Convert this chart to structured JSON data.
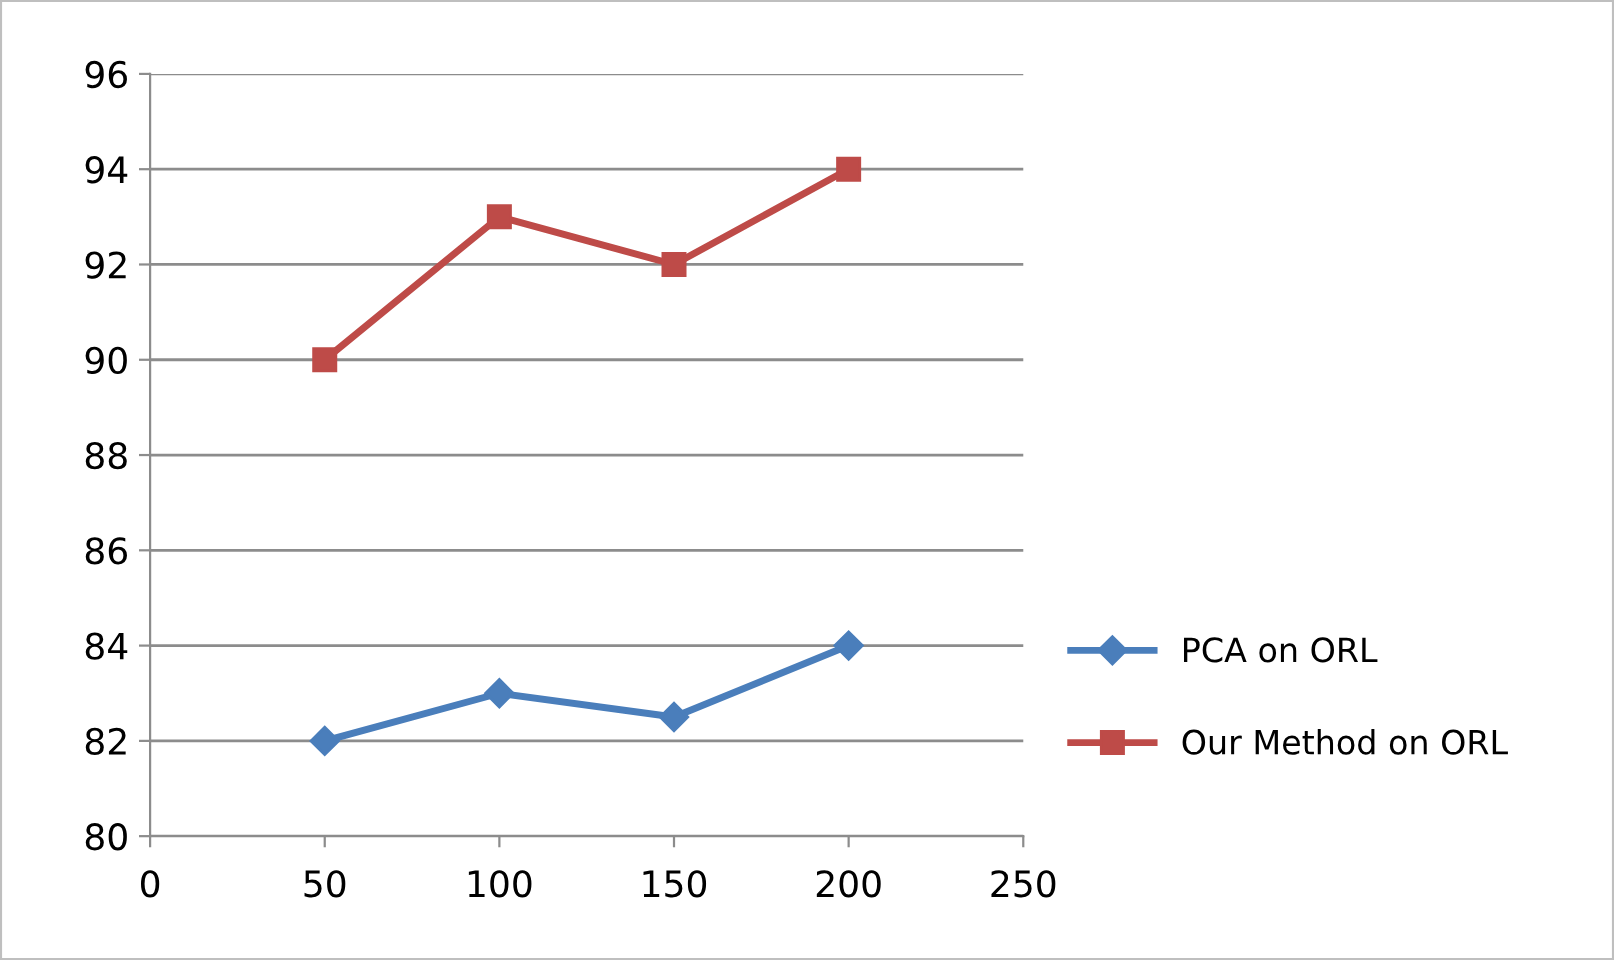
{
  "chart_data": {
    "type": "line",
    "x": [
      50,
      100,
      150,
      200
    ],
    "series": [
      {
        "name": "PCA on ORL",
        "color": "#4a7ebb",
        "marker": "diamond",
        "values": [
          82,
          83,
          82.5,
          84
        ]
      },
      {
        "name": "Our Method on ORL",
        "color": "#be4b48",
        "marker": "square",
        "values": [
          90,
          93,
          92,
          94
        ]
      }
    ],
    "xlim": [
      0,
      250
    ],
    "xticks": [
      0,
      50,
      100,
      150,
      200,
      250
    ],
    "ylim": [
      80,
      96
    ],
    "yticks": [
      80,
      82,
      84,
      86,
      88,
      90,
      92,
      94,
      96
    ],
    "grid": "y",
    "legend": "right",
    "line_style": "solid"
  }
}
